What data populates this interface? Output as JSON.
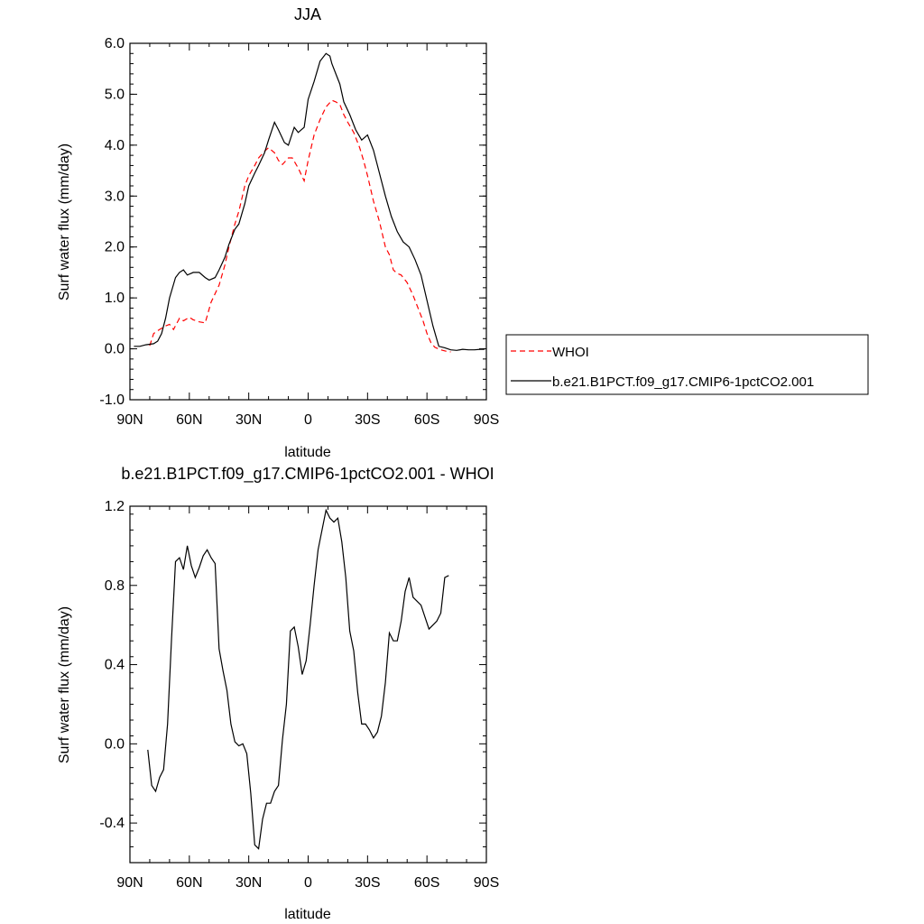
{
  "chart_data": [
    {
      "type": "line",
      "title": "JJA",
      "xlabel": "latitude",
      "ylabel": "Surf water flux (mm/day)",
      "xlim": [
        90,
        -90
      ],
      "ylim": [
        -1.0,
        6.0
      ],
      "x_ticks": [
        90,
        60,
        30,
        0,
        -30,
        -60,
        -90
      ],
      "x_tick_labels": [
        "90N",
        "60N",
        "30N",
        "0",
        "30S",
        "60S",
        "90S"
      ],
      "y_ticks": [
        -1.0,
        0.0,
        1.0,
        2.0,
        3.0,
        4.0,
        5.0,
        6.0
      ],
      "y_tick_labels": [
        "-1.0",
        "0.0",
        "1.0",
        "2.0",
        "3.0",
        "4.0",
        "5.0",
        "6.0"
      ],
      "grid": false,
      "legend": "outside-right",
      "series": [
        {
          "name": "WHOI",
          "color": "#ff0000",
          "dash": "dashed",
          "x": [
            80,
            78,
            75,
            72,
            70,
            68,
            65,
            63,
            60,
            58,
            55,
            52,
            49,
            48,
            45,
            42,
            40,
            37,
            35,
            32,
            30,
            27,
            25,
            22,
            20,
            17,
            15,
            13,
            10,
            8,
            5,
            2,
            0,
            -3,
            -6,
            -9,
            -12,
            -14,
            -16,
            -18,
            -20,
            -23,
            -26,
            -28,
            -30,
            -33,
            -36,
            -39,
            -41,
            -43,
            -45,
            -47,
            -50,
            -53,
            -56,
            -58,
            -60,
            -62,
            -64,
            -67,
            -70,
            -72
          ],
          "y": [
            0.06,
            0.3,
            0.38,
            0.45,
            0.48,
            0.38,
            0.6,
            0.55,
            0.62,
            0.57,
            0.53,
            0.51,
            0.92,
            1.0,
            1.25,
            1.65,
            2.0,
            2.45,
            2.7,
            3.2,
            3.4,
            3.6,
            3.75,
            3.88,
            3.95,
            3.85,
            3.7,
            3.62,
            3.75,
            3.75,
            3.55,
            3.3,
            3.7,
            4.2,
            4.5,
            4.75,
            4.88,
            4.85,
            4.8,
            4.6,
            4.45,
            4.25,
            3.95,
            3.7,
            3.4,
            2.9,
            2.5,
            2.0,
            1.85,
            1.55,
            1.48,
            1.45,
            1.3,
            1.05,
            0.75,
            0.55,
            0.3,
            0.12,
            0.03,
            -0.02,
            -0.05,
            -0.06
          ]
        },
        {
          "name": "b.e21.B1PCT.f09_g17.CMIP6-1pctCO2.001",
          "color": "#000000",
          "dash": "solid",
          "x": [
            88,
            85,
            82,
            78,
            76,
            74,
            72,
            70,
            67,
            65,
            63,
            61,
            58,
            55,
            52,
            50,
            47,
            45,
            42,
            40,
            37,
            35,
            32,
            30,
            27,
            25,
            22,
            20,
            17,
            15,
            12,
            10,
            7,
            5,
            2,
            0,
            -3,
            -6,
            -9,
            -11,
            -12,
            -14,
            -16,
            -18,
            -21,
            -24,
            -27,
            -30,
            -33,
            -36,
            -39,
            -42,
            -45,
            -48,
            -51,
            -54,
            -57,
            -60,
            -63,
            -66,
            -69,
            -72,
            -75,
            -78,
            -81,
            -84,
            -87,
            -89
          ],
          "y": [
            0.05,
            0.05,
            0.08,
            0.1,
            0.15,
            0.3,
            0.6,
            1.0,
            1.4,
            1.5,
            1.55,
            1.45,
            1.5,
            1.5,
            1.4,
            1.35,
            1.4,
            1.55,
            1.8,
            2.05,
            2.35,
            2.45,
            2.85,
            3.2,
            3.45,
            3.6,
            3.85,
            4.1,
            4.45,
            4.3,
            4.05,
            4.0,
            4.35,
            4.25,
            4.35,
            4.9,
            5.25,
            5.65,
            5.8,
            5.75,
            5.6,
            5.4,
            5.2,
            4.85,
            4.6,
            4.3,
            4.1,
            4.2,
            3.9,
            3.45,
            3.0,
            2.6,
            2.3,
            2.1,
            2.0,
            1.75,
            1.45,
            0.95,
            0.45,
            0.05,
            0.02,
            -0.02,
            -0.03,
            -0.01,
            -0.02,
            -0.02,
            -0.01,
            -0.01
          ]
        }
      ]
    },
    {
      "type": "line",
      "title": "b.e21.B1PCT.f09_g17.CMIP6-1pctCO2.001 - WHOI",
      "xlabel": "latitude",
      "ylabel": "Surf water flux (mm/day)",
      "xlim": [
        90,
        -90
      ],
      "ylim": [
        -0.6,
        1.2
      ],
      "x_ticks": [
        90,
        60,
        30,
        0,
        -30,
        -60,
        -90
      ],
      "x_tick_labels": [
        "90N",
        "60N",
        "30N",
        "0",
        "30S",
        "60S",
        "90S"
      ],
      "y_ticks": [
        -0.4,
        0.0,
        0.4,
        0.8,
        1.2
      ],
      "y_tick_labels": [
        "-0.4",
        "0.0",
        "0.4",
        "0.8",
        "1.2"
      ],
      "grid": false,
      "legend": "none",
      "series": [
        {
          "color": "#000000",
          "dash": "solid",
          "x": [
            81,
            79,
            77,
            75,
            73,
            71,
            69,
            67,
            65,
            63,
            61,
            59,
            57,
            55,
            53,
            51,
            49,
            47,
            45,
            43,
            41,
            39,
            37,
            35,
            33,
            31,
            29,
            27,
            25,
            23,
            21,
            19,
            17,
            15,
            13,
            11,
            9,
            7,
            5,
            3,
            1,
            -1,
            -3,
            -5,
            -7,
            -9,
            -11,
            -13,
            -15,
            -17,
            -19,
            -21,
            -23,
            -25,
            -27,
            -29,
            -31,
            -33,
            -35,
            -37,
            -39,
            -41,
            -43,
            -45,
            -47,
            -49,
            -51,
            -53,
            -55,
            -57,
            -59,
            -61,
            -63,
            -65,
            -67,
            -69,
            -71
          ],
          "y": [
            -0.03,
            -0.21,
            -0.24,
            -0.17,
            -0.13,
            0.1,
            0.53,
            0.92,
            0.94,
            0.88,
            1.0,
            0.9,
            0.84,
            0.89,
            0.95,
            0.98,
            0.94,
            0.91,
            0.48,
            0.37,
            0.27,
            0.1,
            0.01,
            -0.01,
            0.0,
            -0.05,
            -0.25,
            -0.51,
            -0.53,
            -0.38,
            -0.3,
            -0.3,
            -0.24,
            -0.21,
            0.02,
            0.2,
            0.57,
            0.59,
            0.49,
            0.35,
            0.42,
            0.6,
            0.8,
            0.98,
            1.08,
            1.18,
            1.14,
            1.12,
            1.14,
            1.02,
            0.84,
            0.57,
            0.47,
            0.26,
            0.1,
            0.1,
            0.07,
            0.03,
            0.06,
            0.14,
            0.31,
            0.56,
            0.52,
            0.52,
            0.62,
            0.77,
            0.84,
            0.74,
            0.72,
            0.7,
            0.64,
            0.58,
            0.6,
            0.62,
            0.66,
            0.84,
            0.85
          ]
        }
      ]
    }
  ]
}
